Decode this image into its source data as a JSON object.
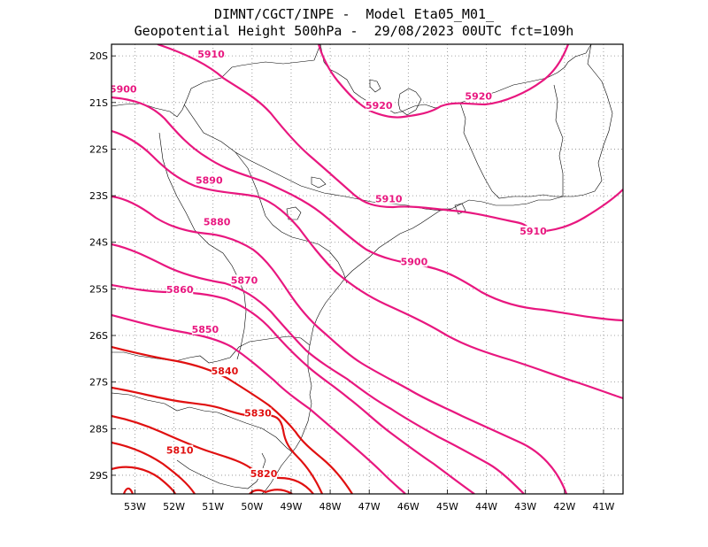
{
  "title": {
    "line1": "DIMNT/CGCT/INPE -  Model Eta05_M01_",
    "line2": "Geopotential Height 500hPa -  29/08/2023 00UTC fct=109h"
  },
  "axes": {
    "lon_labels": [
      "53W",
      "52W",
      "51W",
      "50W",
      "49W",
      "48W",
      "47W",
      "46W",
      "45W",
      "44W",
      "43W",
      "42W",
      "41W"
    ],
    "lat_labels": [
      "20S",
      "21S",
      "22S",
      "23S",
      "24S",
      "25S",
      "26S",
      "27S",
      "28S",
      "29S"
    ],
    "lon_range": [
      -53.6,
      -40.5
    ],
    "lat_range": [
      -29.4,
      -19.75
    ],
    "grid": "dotted"
  },
  "colors": {
    "high_contours": "#e8177f",
    "low_contours": "#e01010",
    "coastline": "#000000",
    "grid": "#888888"
  },
  "contour_labels": [
    {
      "text": "5910",
      "lon": -51.05,
      "lat": -20.0
    },
    {
      "text": "5900",
      "lon": -53.3,
      "lat": -20.75
    },
    {
      "text": "5920",
      "lon": -46.75,
      "lat": -21.1
    },
    {
      "text": "5920",
      "lon": -44.2,
      "lat": -20.9
    },
    {
      "text": "5890",
      "lon": -51.1,
      "lat": -22.7
    },
    {
      "text": "5910",
      "lon": -46.5,
      "lat": -23.1
    },
    {
      "text": "5910",
      "lon": -42.8,
      "lat": -23.8
    },
    {
      "text": "5880",
      "lon": -50.9,
      "lat": -23.6
    },
    {
      "text": "5900",
      "lon": -45.85,
      "lat": -24.45
    },
    {
      "text": "5870",
      "lon": -50.2,
      "lat": -24.85
    },
    {
      "text": "5860",
      "lon": -51.85,
      "lat": -25.05
    },
    {
      "text": "5850",
      "lon": -51.2,
      "lat": -25.9
    },
    {
      "text": "5840",
      "lon": -50.7,
      "lat": -26.8
    },
    {
      "text": "5830",
      "lon": -49.85,
      "lat": -27.7
    },
    {
      "text": "5810",
      "lon": -51.85,
      "lat": -28.5
    },
    {
      "text": "5820",
      "lon": -49.7,
      "lat": -29.0
    }
  ]
}
